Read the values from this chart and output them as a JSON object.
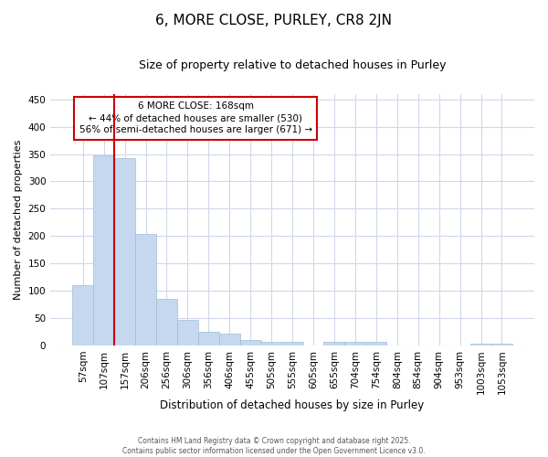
{
  "title_line1": "6, MORE CLOSE, PURLEY, CR8 2JN",
  "title_line2": "Size of property relative to detached houses in Purley",
  "xlabel": "Distribution of detached houses by size in Purley",
  "ylabel": "Number of detached properties",
  "categories": [
    "57sqm",
    "107sqm",
    "157sqm",
    "206sqm",
    "256sqm",
    "306sqm",
    "356sqm",
    "406sqm",
    "455sqm",
    "505sqm",
    "555sqm",
    "605sqm",
    "655sqm",
    "704sqm",
    "754sqm",
    "804sqm",
    "854sqm",
    "904sqm",
    "953sqm",
    "1003sqm",
    "1053sqm"
  ],
  "values": [
    110,
    348,
    343,
    204,
    85,
    47,
    25,
    22,
    10,
    6,
    7,
    0,
    7,
    6,
    6,
    0,
    0,
    0,
    0,
    3,
    3
  ],
  "bar_color": "#c5d8f0",
  "bar_edge_color": "#a0bcd8",
  "vline_x_index": 2,
  "vline_color": "#cc0000",
  "annotation_text": "6 MORE CLOSE: 168sqm\n← 44% of detached houses are smaller (530)\n56% of semi-detached houses are larger (671) →",
  "annotation_box_color": "#ffffff",
  "annotation_box_edge": "#cc0000",
  "ylim": [
    0,
    460
  ],
  "yticks": [
    0,
    50,
    100,
    150,
    200,
    250,
    300,
    350,
    400,
    450
  ],
  "background_color": "#ffffff",
  "grid_color": "#d0d8e8",
  "footer_line1": "Contains HM Land Registry data © Crown copyright and database right 2025.",
  "footer_line2": "Contains public sector information licensed under the Open Government Licence v3.0."
}
